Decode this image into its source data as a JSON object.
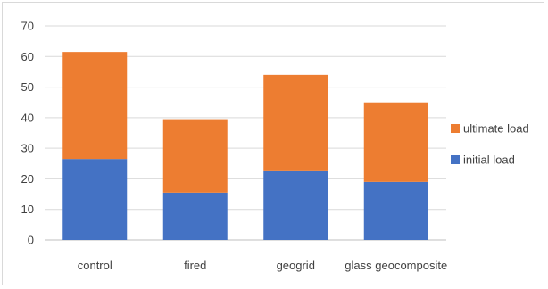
{
  "chart_data": {
    "type": "bar",
    "stacked": true,
    "categories": [
      "control",
      "fired",
      "geogrid",
      "glass geocomposite"
    ],
    "series": [
      {
        "name": "initial load",
        "color": "#4472c4",
        "values": [
          26.5,
          15.5,
          22.5,
          19
        ]
      },
      {
        "name": "ultimate load",
        "color": "#ed7d31",
        "values": [
          35,
          24,
          31.5,
          26
        ]
      }
    ],
    "title": "",
    "xlabel": "",
    "ylabel": "",
    "ylim": [
      0,
      70
    ],
    "yticks": [
      0,
      10,
      20,
      30,
      40,
      50,
      60,
      70
    ],
    "grid": true,
    "legend_position": "right",
    "legend_order": [
      "ultimate load",
      "initial load"
    ]
  }
}
